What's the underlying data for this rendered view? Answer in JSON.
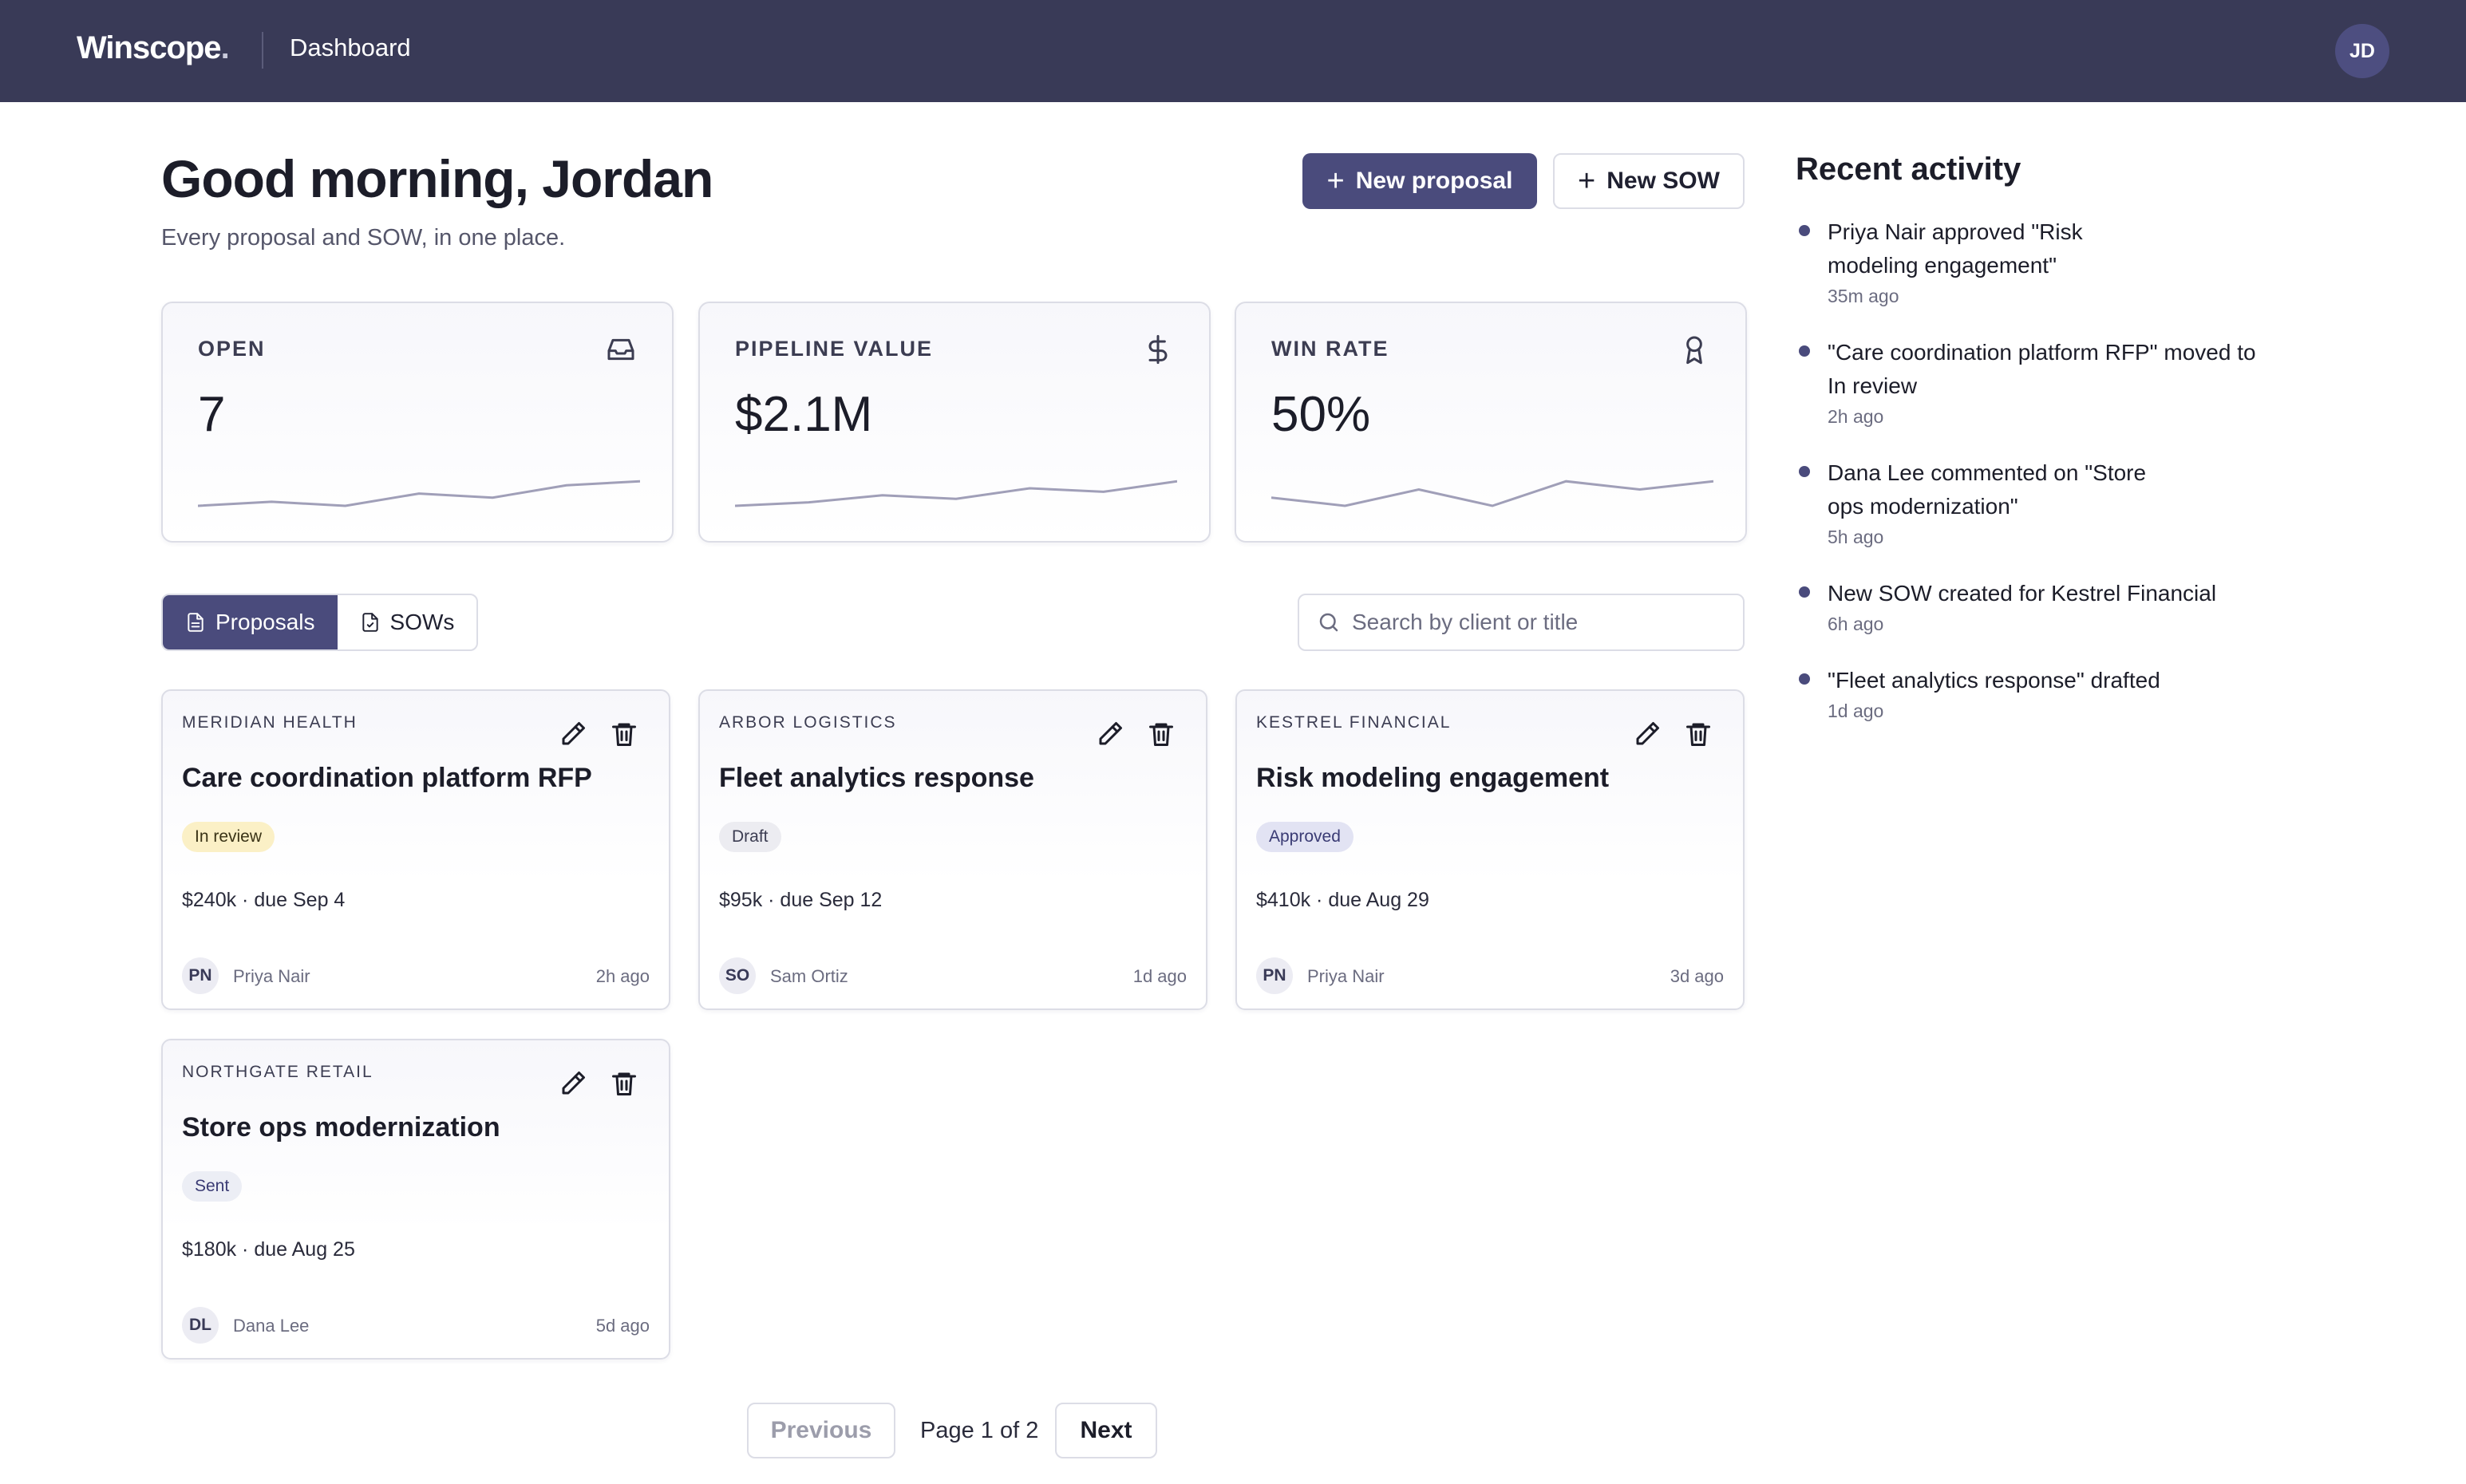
{
  "app": {
    "logo_main": "Winscope",
    "logo_dot": ".",
    "section": "Dashboard",
    "user_initials": "JD"
  },
  "header": {
    "greeting": "Good morning, Jordan",
    "subtitle": "Every proposal and SOW, in one place.",
    "new_proposal": "New proposal",
    "new_sow": "New SOW"
  },
  "kpis": [
    {
      "label": "OPEN",
      "value": "7",
      "icon": "inbox-icon",
      "trend": [
        3,
        4,
        3,
        6,
        5,
        8,
        9
      ]
    },
    {
      "label": "PIPELINE VALUE",
      "value": "$2.1M",
      "icon": "dollar-icon",
      "trend": [
        2,
        3,
        5,
        4,
        7,
        6,
        9
      ]
    },
    {
      "label": "WIN RATE",
      "value": "50%",
      "icon": "award-icon",
      "trend": [
        5,
        4,
        6,
        4,
        7,
        6,
        7
      ]
    }
  ],
  "tabs": {
    "proposals": "Proposals",
    "sows": "SOWs",
    "active": "proposals"
  },
  "search": {
    "placeholder": "Search by client or title",
    "value": ""
  },
  "proposals": [
    {
      "client": "MERIDIAN HEALTH",
      "title": "Care coordination platform RFP",
      "status": "In review",
      "status_kind": "review",
      "meta": "$240k · due Sep 4",
      "owner_initials": "PN",
      "owner": "Priya Nair",
      "updated": "2h ago"
    },
    {
      "client": "ARBOR LOGISTICS",
      "title": "Fleet analytics response",
      "status": "Draft",
      "status_kind": "draft",
      "meta": "$95k · due Sep 12",
      "owner_initials": "SO",
      "owner": "Sam Ortiz",
      "updated": "1d ago"
    },
    {
      "client": "KESTREL FINANCIAL",
      "title": "Risk modeling engagement",
      "status": "Approved",
      "status_kind": "approved",
      "meta": "$410k · due Aug 29",
      "owner_initials": "PN",
      "owner": "Priya Nair",
      "updated": "3d ago"
    },
    {
      "client": "NORTHGATE RETAIL",
      "title": "Store ops modernization",
      "status": "Sent",
      "status_kind": "sent",
      "meta": "$180k · due Aug 25",
      "owner_initials": "DL",
      "owner": "Dana Lee",
      "updated": "5d ago"
    }
  ],
  "pagination": {
    "previous": "Previous",
    "label": "Page 1 of 2",
    "next": "Next"
  },
  "activity": {
    "title": "Recent activity",
    "items": [
      {
        "text": "Priya Nair approved \"Risk modeling engagement\"",
        "time": "35m ago"
      },
      {
        "text": "\"Care coordination platform RFP\" moved to In review",
        "time": "2h ago"
      },
      {
        "text": "Dana Lee commented on \"Store ops modernization\"",
        "time": "5h ago"
      },
      {
        "text": "New SOW created for Kestrel Financial",
        "time": "6h ago"
      },
      {
        "text": "\"Fleet analytics response\" drafted",
        "time": "1d ago"
      }
    ]
  },
  "colors": {
    "nav": "#393a57",
    "accent": "#4a4b7c",
    "sparkline": "#a09fb8"
  }
}
